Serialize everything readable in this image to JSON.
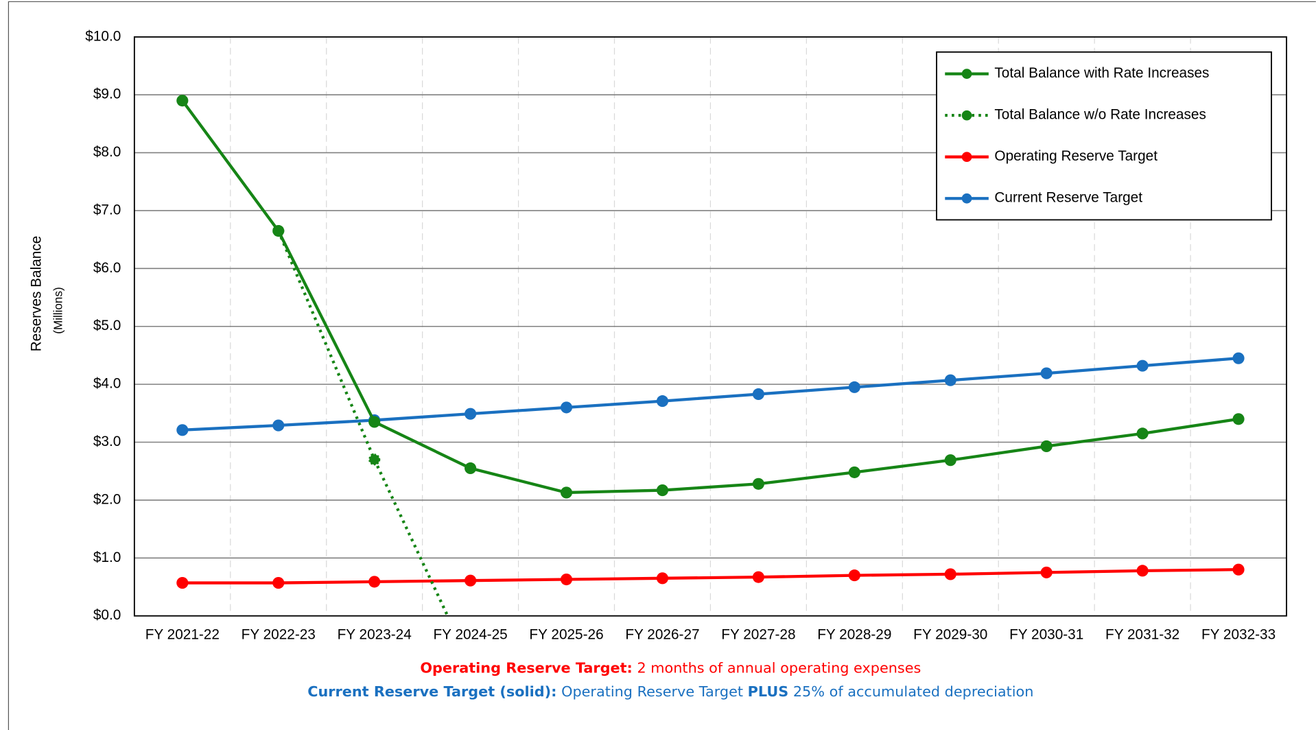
{
  "chart_data": {
    "type": "line",
    "y_label": "Reserves Balance",
    "y_label_sub": "(Millions)",
    "categories": [
      "FY 2021-22",
      "FY 2022-23",
      "FY 2023-24",
      "FY 2024-25",
      "FY 2025-26",
      "FY 2026-27",
      "FY 2027-28",
      "FY 2028-29",
      "FY 2029-30",
      "FY 2030-31",
      "FY 2031-32",
      "FY 2032-33"
    ],
    "series": [
      {
        "name": "Total Balance with Rate Increases",
        "color": "#168516",
        "style": "solid",
        "values": [
          8.9,
          6.65,
          3.35,
          2.55,
          2.13,
          2.17,
          2.28,
          2.48,
          2.69,
          2.93,
          3.15,
          3.4
        ]
      },
      {
        "name": "Total Balance w/o Rate Increases",
        "color": "#168516",
        "style": "dotted",
        "values": [
          null,
          6.65,
          2.7,
          -0.84,
          null,
          null,
          null,
          null,
          null,
          null,
          null,
          null
        ]
      },
      {
        "name": "Operating Reserve Target",
        "color": "#ff0000",
        "style": "solid",
        "values": [
          0.57,
          0.57,
          0.59,
          0.61,
          0.63,
          0.65,
          0.67,
          0.7,
          0.72,
          0.75,
          0.78,
          0.8
        ]
      },
      {
        "name": "Current Reserve Target",
        "color": "#1a70c0",
        "style": "solid",
        "values": [
          3.21,
          3.29,
          3.38,
          3.49,
          3.6,
          3.71,
          3.83,
          3.95,
          4.07,
          4.19,
          4.32,
          4.45
        ]
      }
    ],
    "ylim": [
      0,
      10
    ],
    "yticks": [
      {
        "value": 0,
        "label": "$0.0"
      },
      {
        "value": 1,
        "label": "$1.0"
      },
      {
        "value": 2,
        "label": "$2.0"
      },
      {
        "value": 3,
        "label": "$3.0"
      },
      {
        "value": 4,
        "label": "$4.0"
      },
      {
        "value": 5,
        "label": "$5.0"
      },
      {
        "value": 6,
        "label": "$6.0"
      },
      {
        "value": 7,
        "label": "$7.0"
      },
      {
        "value": 8,
        "label": "$8.0"
      },
      {
        "value": 9,
        "label": "$9.0"
      },
      {
        "value": 10,
        "label": "$10.0"
      }
    ],
    "grid": true,
    "legend": "upper right",
    "notes": [
      {
        "color": "#ff0000",
        "parts": [
          {
            "bold": true,
            "text": "Operating Reserve Target:"
          },
          {
            "bold": false,
            "text": " 2 months of annual operating expenses"
          }
        ]
      },
      {
        "color": "#1a70c0",
        "parts": [
          {
            "bold": true,
            "text": "Current Reserve Target (solid):"
          },
          {
            "bold": false,
            "text": " Operating Reserve Target "
          },
          {
            "bold": true,
            "text": "PLUS"
          },
          {
            "bold": false,
            "text": " 25% of accumulated depreciation"
          }
        ]
      }
    ]
  }
}
